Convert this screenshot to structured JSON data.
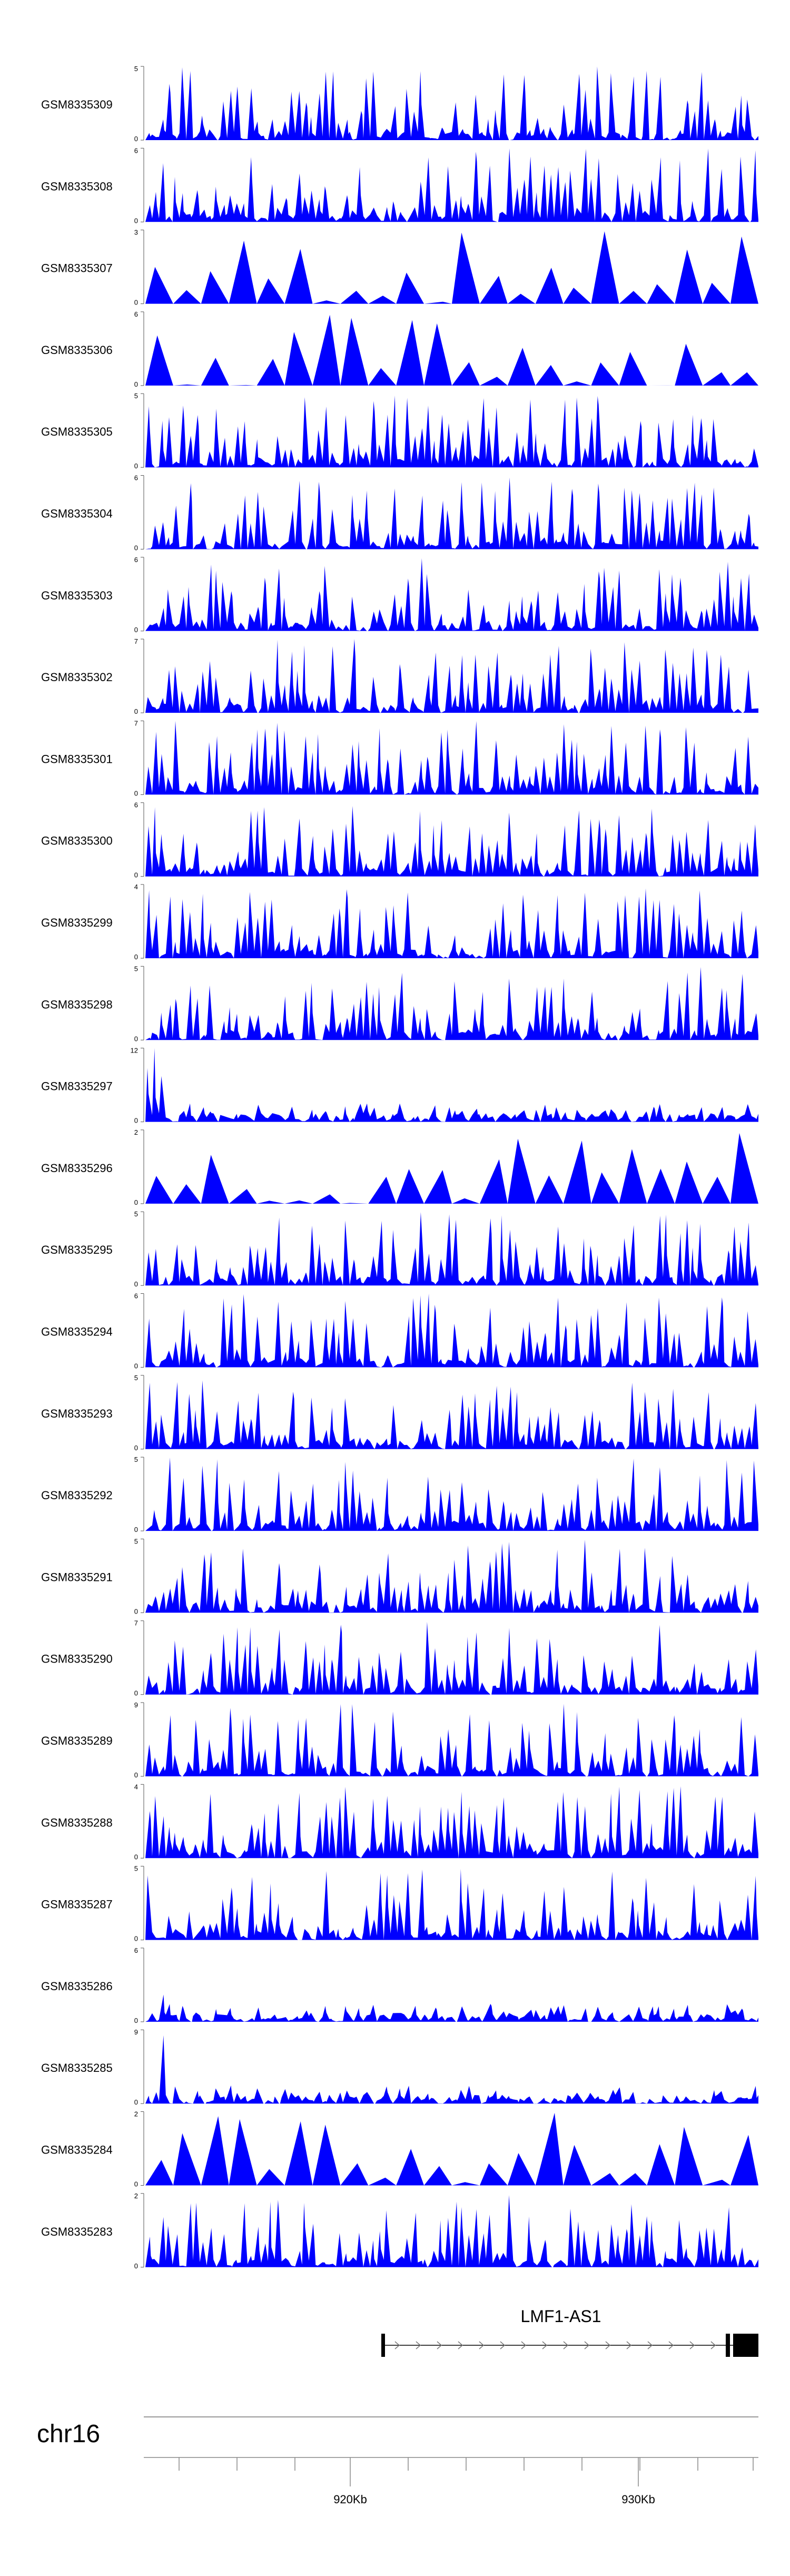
{
  "chart_data": {
    "type": "area",
    "fill_color": "#0000ff",
    "tracks": [
      {
        "name": "GSM8335309",
        "ymax": "5",
        "ymin": "0",
        "seed": 9
      },
      {
        "name": "GSM8335308",
        "ymax": "6",
        "ymin": "0",
        "seed": 8
      },
      {
        "name": "GSM8335307",
        "ymax": "3",
        "ymin": "0",
        "seed": 7
      },
      {
        "name": "GSM8335306",
        "ymax": "6",
        "ymin": "0",
        "seed": 6
      },
      {
        "name": "GSM8335305",
        "ymax": "5",
        "ymin": "0",
        "seed": 5
      },
      {
        "name": "GSM8335304",
        "ymax": "6",
        "ymin": "0",
        "seed": 4
      },
      {
        "name": "GSM8335303",
        "ymax": "6",
        "ymin": "0",
        "seed": 3
      },
      {
        "name": "GSM8335302",
        "ymax": "7",
        "ymin": "0",
        "seed": 2
      },
      {
        "name": "GSM8335301",
        "ymax": "7",
        "ymin": "0",
        "seed": 1
      },
      {
        "name": "GSM8335300",
        "ymax": "6",
        "ymin": "0",
        "seed": 30
      },
      {
        "name": "GSM8335299",
        "ymax": "4",
        "ymin": "0",
        "seed": 29
      },
      {
        "name": "GSM8335298",
        "ymax": "5",
        "ymin": "0",
        "seed": 28
      },
      {
        "name": "GSM8335297",
        "ymax": "12",
        "ymin": "0",
        "seed": 27
      },
      {
        "name": "GSM8335296",
        "ymax": "2",
        "ymin": "0",
        "seed": 26
      },
      {
        "name": "GSM8335295",
        "ymax": "5",
        "ymin": "0",
        "seed": 25
      },
      {
        "name": "GSM8335294",
        "ymax": "6",
        "ymin": "0",
        "seed": 24
      },
      {
        "name": "GSM8335293",
        "ymax": "5",
        "ymin": "0",
        "seed": 23
      },
      {
        "name": "GSM8335292",
        "ymax": "5",
        "ymin": "0",
        "seed": 22
      },
      {
        "name": "GSM8335291",
        "ymax": "5",
        "ymin": "0",
        "seed": 21
      },
      {
        "name": "GSM8335290",
        "ymax": "7",
        "ymin": "0",
        "seed": 20
      },
      {
        "name": "GSM8335289",
        "ymax": "9",
        "ymin": "0",
        "seed": 19
      },
      {
        "name": "GSM8335288",
        "ymax": "4",
        "ymin": "0",
        "seed": 18
      },
      {
        "name": "GSM8335287",
        "ymax": "5",
        "ymin": "0",
        "seed": 17
      },
      {
        "name": "GSM8335286",
        "ymax": "6",
        "ymin": "0",
        "seed": 16
      },
      {
        "name": "GSM8335285",
        "ymax": "9",
        "ymin": "0",
        "seed": 15
      },
      {
        "name": "GSM8335284",
        "ymax": "2",
        "ymin": "0",
        "seed": 14
      },
      {
        "name": "GSM8335283",
        "ymax": "2",
        "ymin": "0",
        "seed": 13
      }
    ],
    "gene": {
      "name": "LMF1-AS1",
      "strand": "+"
    },
    "chromosome": "chr16",
    "x_ticks": [
      "920Kb",
      "930Kb"
    ]
  }
}
